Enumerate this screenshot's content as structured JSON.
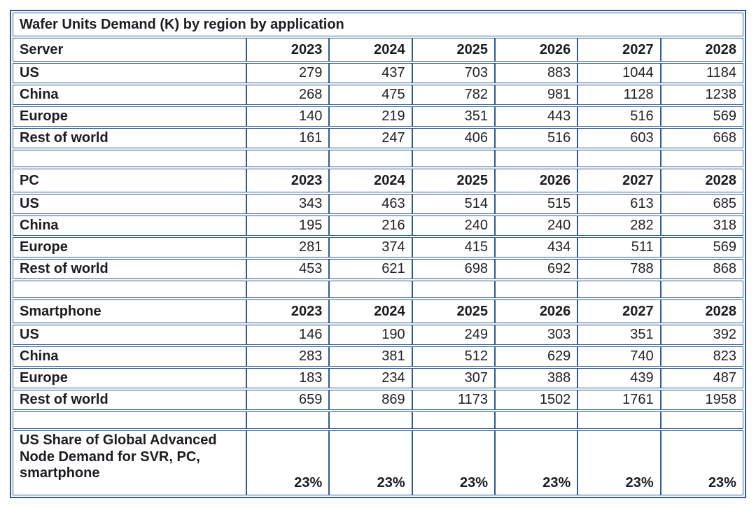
{
  "colors": {
    "border": "#2e5b94",
    "text": "#1b1c21"
  },
  "chart_data": {
    "type": "table",
    "title": "Wafer Units Demand (K) by region by application",
    "columns": [
      "2023",
      "2024",
      "2025",
      "2026",
      "2027",
      "2028"
    ],
    "sections": [
      {
        "name": "Server",
        "rows": [
          {
            "label": "US",
            "values": [
              279,
              437,
              703,
              883,
              1044,
              1184
            ]
          },
          {
            "label": "China",
            "values": [
              268,
              475,
              782,
              981,
              1128,
              1238
            ]
          },
          {
            "label": "Europe",
            "values": [
              140,
              219,
              351,
              443,
              516,
              569
            ]
          },
          {
            "label": "Rest of world",
            "values": [
              161,
              247,
              406,
              516,
              603,
              668
            ]
          }
        ]
      },
      {
        "name": "PC",
        "rows": [
          {
            "label": "US",
            "values": [
              343,
              463,
              514,
              515,
              613,
              685
            ]
          },
          {
            "label": "China",
            "values": [
              195,
              216,
              240,
              240,
              282,
              318
            ]
          },
          {
            "label": "Europe",
            "values": [
              281,
              374,
              415,
              434,
              511,
              569
            ]
          },
          {
            "label": "Rest of world",
            "values": [
              453,
              621,
              698,
              692,
              788,
              868
            ]
          }
        ]
      },
      {
        "name": "Smartphone",
        "rows": [
          {
            "label": "US",
            "values": [
              146,
              190,
              249,
              303,
              351,
              392
            ]
          },
          {
            "label": "China",
            "values": [
              283,
              381,
              512,
              629,
              740,
              823
            ]
          },
          {
            "label": "Europe",
            "values": [
              183,
              234,
              307,
              388,
              439,
              487
            ]
          },
          {
            "label": "Rest of world",
            "values": [
              659,
              869,
              1173,
              1502,
              1761,
              1958
            ]
          }
        ]
      }
    ],
    "summary": {
      "label": "US Share of Global Advanced Node Demand for SVR, PC, smartphone",
      "values": [
        "23%",
        "23%",
        "23%",
        "23%",
        "23%",
        "23%"
      ]
    }
  }
}
